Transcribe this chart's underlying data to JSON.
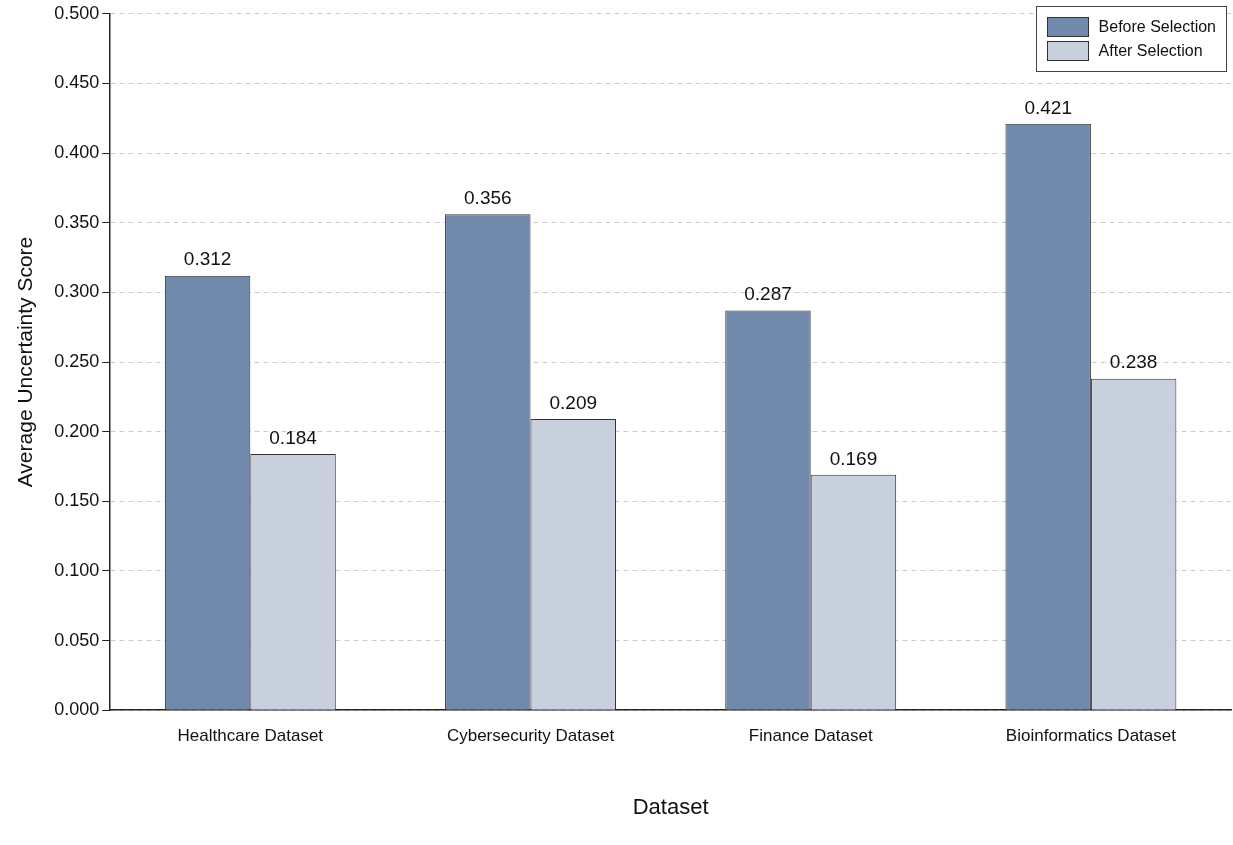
{
  "chart_data": {
    "type": "bar",
    "xlabel": "Dataset",
    "ylabel": "Average Uncertainty Score",
    "categories": [
      "Healthcare Dataset",
      "Cybersecurity Dataset",
      "Finance Dataset",
      "Bioinformatics Dataset"
    ],
    "series": [
      {
        "name": "Before Selection",
        "color": "#7189ab",
        "values": [
          0.312,
          0.356,
          0.287,
          0.421
        ]
      },
      {
        "name": "After Selection",
        "color": "#c8d0dd",
        "values": [
          0.184,
          0.209,
          0.169,
          0.238
        ]
      }
    ],
    "ylim": [
      0,
      0.5
    ],
    "yticks": [
      {
        "value": 0,
        "label": "0.000"
      },
      {
        "value": 0.05,
        "label": "0.050"
      },
      {
        "value": 0.1,
        "label": "0.100"
      },
      {
        "value": 0.15,
        "label": "0.150"
      },
      {
        "value": 0.2,
        "label": "0.200"
      },
      {
        "value": 0.25,
        "label": "0.250"
      },
      {
        "value": 0.3,
        "label": "0.300"
      },
      {
        "value": 0.35,
        "label": "0.350"
      },
      {
        "value": 0.4,
        "label": "0.400"
      },
      {
        "value": 0.45,
        "label": "0.450"
      },
      {
        "value": 0.5,
        "label": "0.500"
      }
    ],
    "grid": "y",
    "legend": "top right",
    "data_labels": true
  }
}
